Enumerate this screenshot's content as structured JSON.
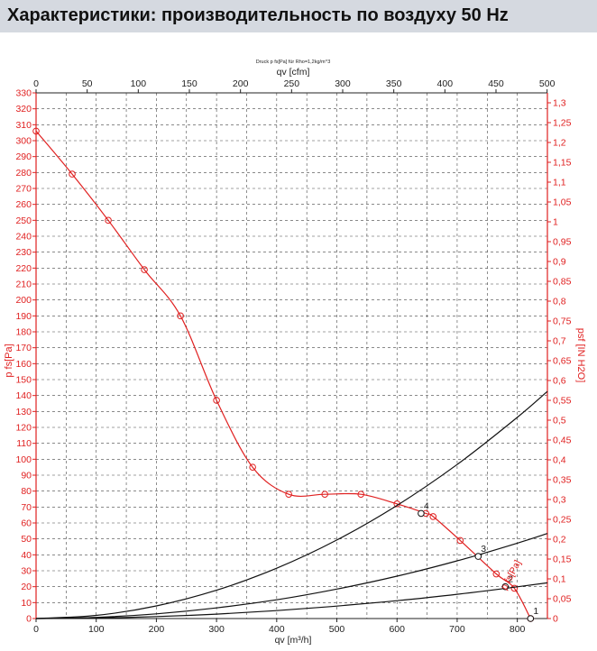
{
  "header": {
    "title": "Характеристики: производительность по воздуху 50 Hz"
  },
  "chart_data": {
    "type": "line",
    "title": "Druck p fs[Pa] für Rho=1,2kg/m^3",
    "xlabel": "qv [m³/h]",
    "x2label": "qv [cfm]",
    "ylabel": "p  fs[Pa]",
    "y2label": "psf [IN H2O]",
    "xlim": [
      0,
      850
    ],
    "ylim": [
      0,
      330
    ],
    "x2lim": [
      0,
      500.3
    ],
    "y2lim": [
      0,
      1.325
    ],
    "grid": true,
    "x_ticks": [
      "0",
      "100",
      "200",
      "300",
      "400",
      "500",
      "600",
      "700",
      "800"
    ],
    "x2_ticks": [
      "0",
      "50",
      "100",
      "150",
      "200",
      "250",
      "300",
      "350",
      "400",
      "450",
      "500"
    ],
    "y_ticks": [
      "0",
      "10",
      "20",
      "30",
      "40",
      "50",
      "60",
      "70",
      "80",
      "90",
      "100",
      "110",
      "120",
      "130",
      "140",
      "150",
      "160",
      "170",
      "180",
      "190",
      "200",
      "210",
      "220",
      "230",
      "240",
      "250",
      "260",
      "270",
      "280",
      "290",
      "300",
      "310",
      "320",
      "330"
    ],
    "y2_ticks": [
      "0",
      "0,05",
      "0,1",
      "0,15",
      "0,2",
      "0,25",
      "0,3",
      "0,35",
      "0,4",
      "0,45",
      "0,5",
      "0,55",
      "0,6",
      "0,65",
      "0,7",
      "0,75",
      "0,8",
      "0,85",
      "0,9",
      "0,95",
      "1",
      "1,05",
      "1,1",
      "1,15",
      "1,2",
      "1,25",
      "1,3"
    ],
    "series": [
      {
        "name": "p  fs[Pa]",
        "color": "#e02020",
        "markers": true,
        "x": [
          0,
          60,
          120,
          180,
          240,
          300,
          360,
          420,
          480,
          540,
          600,
          648,
          660,
          705,
          765,
          795,
          822
        ],
        "y": [
          306,
          279,
          250,
          219,
          190,
          137,
          95,
          78,
          78,
          78,
          72,
          66,
          64,
          49,
          28,
          19,
          0
        ]
      },
      {
        "color": "#111111",
        "x": [
          0,
          100,
          200,
          300,
          400,
          500,
          600,
          700,
          800,
          850
        ],
        "y": [
          0,
          1.97,
          7.9,
          17.8,
          31.6,
          49.3,
          71.0,
          96.7,
          126.3,
          142.6
        ]
      },
      {
        "color": "#111111",
        "x": [
          0,
          100,
          200,
          300,
          400,
          500,
          600,
          700,
          800,
          850
        ],
        "y": [
          0,
          0.74,
          2.96,
          6.7,
          11.8,
          18.5,
          26.6,
          36.2,
          47.3,
          53.4
        ]
      },
      {
        "color": "#111111",
        "x": [
          0,
          100,
          200,
          300,
          400,
          500,
          600,
          700,
          800,
          850
        ],
        "y": [
          0,
          0.31,
          1.24,
          2.8,
          5.0,
          7.8,
          11.2,
          15.2,
          19.9,
          22.4
        ]
      }
    ],
    "operating_points": [
      {
        "label": "1",
        "x": 822,
        "y": 0
      },
      {
        "label": "2",
        "x": 780,
        "y": 20
      },
      {
        "label": "3",
        "x": 735,
        "y": 39
      },
      {
        "label": "4",
        "x": 640,
        "y": 66
      }
    ],
    "curve_label": "p  fs[Pa]"
  }
}
